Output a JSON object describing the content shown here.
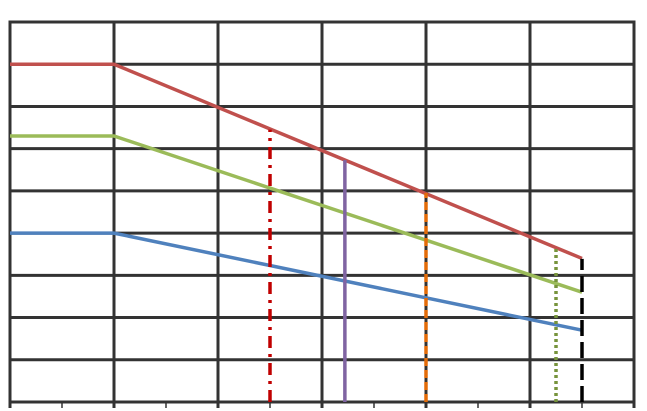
{
  "chart_data": {
    "type": "line",
    "xlim": [
      0,
      6
    ],
    "ylim": [
      0,
      9
    ],
    "xticks": [
      0,
      1,
      2,
      3,
      4,
      5,
      6
    ],
    "xminorticks": [
      0.5,
      1.5,
      2.5,
      3.5,
      4.5,
      5.5
    ],
    "yticks": [
      0,
      1,
      2,
      3,
      4,
      5,
      6,
      7,
      8,
      9
    ],
    "grid": true,
    "grid_color": "#333333",
    "series": [
      {
        "x": [
          0,
          1,
          5.5
        ],
        "values": [
          8,
          8,
          3.4
        ],
        "color": "#c0504d",
        "dash": "solid"
      },
      {
        "x": [
          0,
          1,
          5.5
        ],
        "values": [
          6.3,
          6.3,
          2.6
        ],
        "color": "#9bbb59",
        "dash": "solid"
      },
      {
        "x": [
          0,
          1,
          5.5
        ],
        "values": [
          4,
          4,
          1.7
        ],
        "color": "#4f81bd",
        "dash": "solid"
      },
      {
        "x": [
          2.5,
          2.5
        ],
        "values": [
          0,
          6.45
        ],
        "color": "#c00000",
        "dash": "dash-dot"
      },
      {
        "x": [
          3.22,
          3.22
        ],
        "values": [
          0,
          5.73
        ],
        "color": "#8064a2",
        "dash": "solid"
      },
      {
        "x": [
          4,
          4
        ],
        "values": [
          0,
          4.95
        ],
        "color": "#e36c09",
        "dash": "dashed"
      },
      {
        "x": [
          5.25,
          5.25
        ],
        "values": [
          0,
          3.63
        ],
        "color": "#77933c",
        "dash": "dotted"
      },
      {
        "x": [
          5.5,
          5.5
        ],
        "values": [
          0,
          3.39
        ],
        "color": "#000000",
        "dash": "long-dash"
      }
    ]
  }
}
